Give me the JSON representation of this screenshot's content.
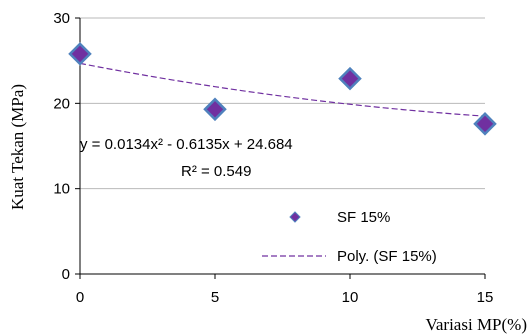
{
  "chart_data": {
    "type": "scatter",
    "xlabel": "Variasi MP(%)",
    "ylabel": "Kuat  Tekan (MPa)",
    "xlim": [
      0,
      15
    ],
    "ylim": [
      0,
      30
    ],
    "xticks": [
      "0",
      "5",
      "10",
      "15"
    ],
    "yticks": [
      "0",
      "10",
      "20",
      "30"
    ],
    "grid": "horizontal",
    "legend_position": "bottom-right",
    "series": [
      {
        "name": "SF 15%",
        "type": "scatter",
        "marker": "diamond",
        "color": "#7030A0",
        "x": [
          0,
          5,
          10,
          15
        ],
        "y": [
          25.8,
          19.3,
          22.9,
          17.6
        ]
      },
      {
        "name": "Poly. (SF 15%)",
        "type": "line",
        "style": "dashed",
        "color": "#7030A0",
        "coefficients": {
          "a": 0.0134,
          "b": -0.6135,
          "c": 24.684
        }
      }
    ],
    "annotations": {
      "equation": "y = 0.0134x² - 0.6135x + 24.684",
      "r_squared": "R² = 0.549"
    }
  },
  "colors": {
    "marker_fill": "#7030A0",
    "marker_stroke": "#4F81BD",
    "trendline": "#7030A0",
    "grid": "#B9B9B9"
  }
}
